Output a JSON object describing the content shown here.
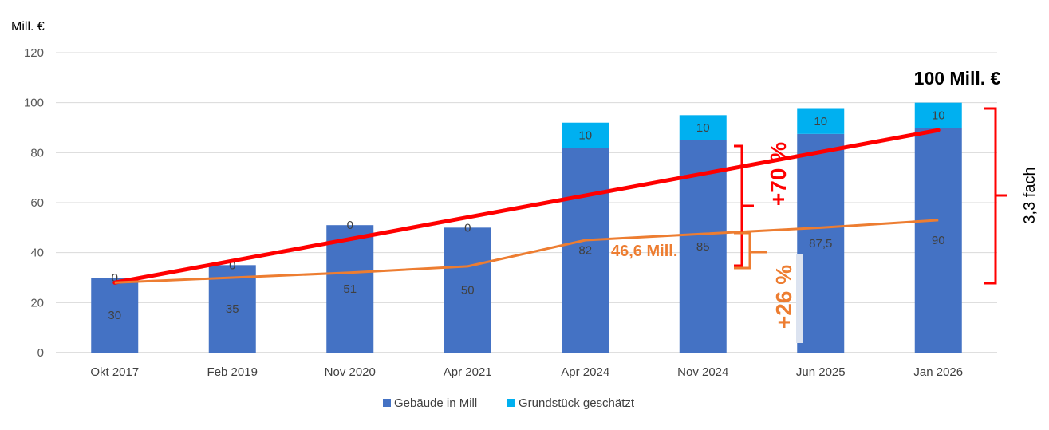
{
  "chart_data": {
    "type": "bar",
    "stacked": true,
    "ylabel": "Mill. €",
    "ylim": [
      0,
      120
    ],
    "yticks": [
      0,
      20,
      40,
      60,
      80,
      100,
      120
    ],
    "grid": true,
    "legend_position": "bottom",
    "categories": [
      "Okt 2017",
      "Feb 2019",
      "Nov 2020",
      "Apr 2021",
      "Apr 2024",
      "Nov 2024",
      "Jun 2025",
      "Jan 2026"
    ],
    "series": [
      {
        "name": "Gebäude in Mill",
        "color": "#4472C4",
        "values": [
          30,
          35,
          51,
          50,
          82,
          85,
          87.5,
          90
        ],
        "labels": [
          "30",
          "35",
          "51",
          "50",
          "82",
          "85",
          "87,5",
          "90"
        ]
      },
      {
        "name": "Grundstück geschätzt",
        "color": "#00B0F0",
        "values": [
          0,
          0,
          0,
          0,
          10,
          10,
          10,
          10
        ],
        "labels": [
          "0",
          "0",
          "0",
          "0",
          "10",
          "10",
          "10",
          "10"
        ]
      }
    ],
    "lines": [
      {
        "color": "#FF0000",
        "from": [
          0,
          28
        ],
        "to": [
          7,
          89
        ]
      },
      {
        "color": "#ED7D31",
        "values": [
          28,
          30,
          32,
          34.5,
          45,
          47.5,
          50,
          53
        ]
      }
    ],
    "annotations": {
      "total_label": "100 Mill. €",
      "red_pct": "+70 %",
      "orange_pct": "+26 %",
      "orange_value": "46,6 Mill.",
      "factor": "3,3 fach"
    }
  }
}
